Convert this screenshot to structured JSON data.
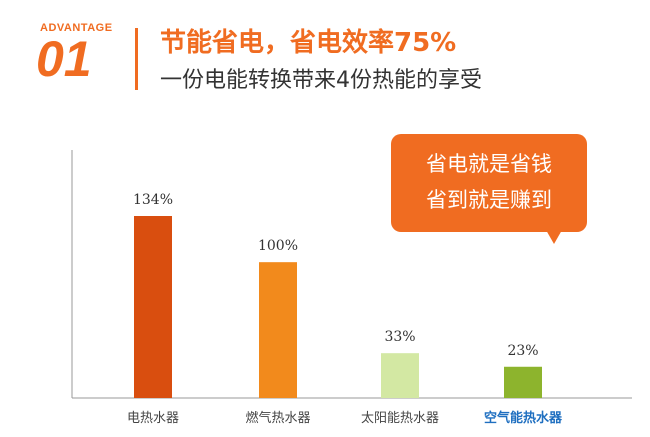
{
  "header": {
    "advantage_label": "ADVANTAGE",
    "advantage_number": "01",
    "headline": "节能省电，省电效率75%",
    "subline": "一份电能转换带来4份热能的享受"
  },
  "callout": {
    "line1": "省电就是省钱",
    "line2": "省到就是赚到"
  },
  "chart_data": {
    "type": "bar",
    "categories": [
      "电热水器",
      "燃气热水器",
      "太阳能热水器",
      "空气能热水器"
    ],
    "values": [
      134,
      100,
      33,
      23
    ],
    "labels": [
      "134%",
      "100%",
      "33%",
      "23%"
    ],
    "colors": [
      "#d94e0f",
      "#f28a1c",
      "#d3e8a3",
      "#8db42d"
    ],
    "highlight_category_color": "#1f6fc0",
    "ylim": [
      0,
      150
    ],
    "xlabel": "",
    "ylabel": ""
  },
  "colors": {
    "accent": "#f06c21",
    "axis": "#999999",
    "text": "#333333"
  }
}
